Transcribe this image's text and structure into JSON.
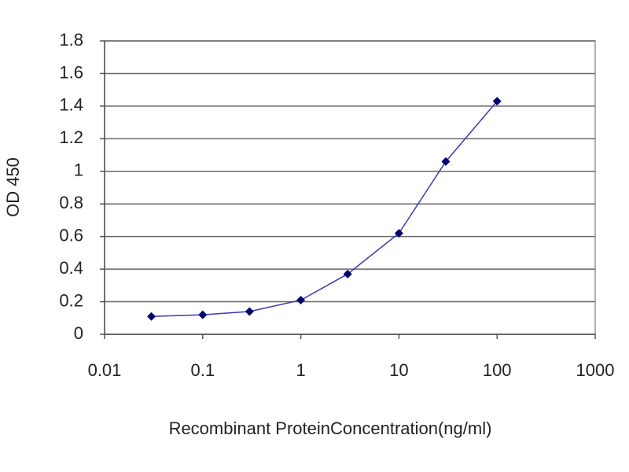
{
  "chart_data": {
    "type": "line",
    "x_label": "Recombinant ProteinConcentration(ng/ml)",
    "y_label": "OD 450",
    "x": [
      0.03,
      0.1,
      0.3,
      1,
      3,
      10,
      30,
      100
    ],
    "series": [
      {
        "color": "#3b3bb0",
        "marker_color": "#00006e",
        "values": [
          0.11,
          0.12,
          0.14,
          0.21,
          0.37,
          0.62,
          1.06,
          1.43
        ]
      }
    ],
    "xscale": "log",
    "xlim": [
      0.01,
      1000
    ],
    "xticks": [
      0.01,
      0.1,
      1,
      10,
      100,
      1000
    ],
    "ylim": [
      0,
      1.8
    ],
    "yticks": [
      0,
      0.2,
      0.4,
      0.6,
      0.8,
      1,
      1.2,
      1.4,
      1.6,
      1.8
    ],
    "grid": true
  }
}
